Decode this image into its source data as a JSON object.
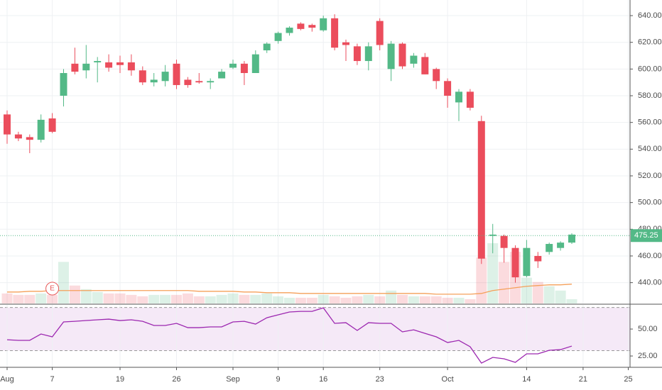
{
  "chart_data": {
    "type": "candlestick",
    "categories": [
      "Aug",
      null,
      null,
      null,
      "7",
      null,
      null,
      null,
      null,
      null,
      "19",
      null,
      null,
      null,
      null,
      "26",
      null,
      null,
      null,
      null,
      "Sep",
      null,
      null,
      null,
      "9",
      null,
      null,
      null,
      "16",
      null,
      null,
      null,
      null,
      "23",
      null,
      null,
      null,
      null,
      null,
      "Oct",
      null,
      null,
      null,
      null,
      null,
      null,
      "14",
      null,
      null,
      null,
      null,
      "21",
      null,
      null,
      null,
      "25"
    ],
    "open": [
      566,
      551,
      549,
      547,
      563,
      580,
      604,
      599,
      605,
      605,
      605,
      605,
      599,
      590,
      591,
      604,
      592,
      591,
      590,
      593,
      601,
      604,
      597,
      614,
      621,
      627,
      634,
      633,
      629,
      638,
      620,
      617,
      606,
      636,
      600,
      619,
      604,
      609,
      600,
      591,
      575,
      583,
      561,
      475,
      475,
      466,
      445,
      460,
      463,
      466,
      470,
      null,
      null,
      null,
      null,
      null
    ],
    "high": [
      569,
      553,
      551,
      566,
      567,
      600,
      616,
      618,
      609,
      611,
      610,
      611,
      602,
      597,
      603,
      607,
      594,
      597,
      593,
      600,
      607,
      606,
      614,
      620,
      628,
      632,
      635,
      634,
      640,
      641,
      622,
      619,
      620,
      638,
      621,
      620,
      612,
      612,
      601,
      593,
      585,
      585,
      565,
      484,
      476,
      468,
      472,
      463,
      470,
      471,
      477,
      null,
      null,
      null,
      null,
      null
    ],
    "low": [
      544,
      546,
      537,
      545,
      552,
      572,
      596,
      593,
      590,
      598,
      597,
      595,
      588,
      587,
      587,
      585,
      586,
      589,
      585,
      593,
      600,
      588,
      597,
      612,
      619,
      625,
      629,
      628,
      628,
      614,
      606,
      603,
      599,
      614,
      591,
      600,
      601,
      596,
      585,
      571,
      561,
      569,
      454,
      462,
      455,
      440,
      444,
      451,
      461,
      464,
      469,
      null,
      null,
      null,
      null,
      null
    ],
    "close": [
      551,
      548,
      547,
      562,
      553,
      597,
      598,
      604,
      606,
      601,
      603,
      599,
      590,
      592,
      598,
      588,
      588,
      590,
      591,
      598,
      604,
      597,
      611,
      619,
      627,
      631,
      630,
      631,
      638,
      616,
      618,
      606,
      617,
      618,
      619,
      602,
      610,
      596,
      591,
      580,
      583,
      571,
      458,
      476,
      466,
      444,
      466,
      456,
      469,
      470,
      476,
      null,
      null,
      null,
      null,
      null
    ],
    "volume": [
      14,
      12,
      12,
      14,
      12,
      58,
      25,
      20,
      16,
      14,
      14,
      12,
      10,
      12,
      12,
      12,
      14,
      10,
      10,
      12,
      14,
      12,
      12,
      14,
      10,
      8,
      8,
      8,
      12,
      10,
      8,
      10,
      12,
      10,
      18,
      12,
      10,
      10,
      10,
      8,
      8,
      6,
      64,
      84,
      58,
      72,
      36,
      30,
      24,
      18,
      6,
      null,
      null,
      null,
      null,
      null
    ],
    "volume_ma": [
      16,
      16,
      17,
      17,
      18,
      18,
      18,
      18,
      18,
      18,
      18,
      18,
      18,
      18,
      18,
      18,
      18,
      17,
      17,
      17,
      17,
      16,
      16,
      15,
      15,
      15,
      14,
      14,
      14,
      14,
      14,
      14,
      14,
      14,
      14,
      14,
      14,
      14,
      13,
      13,
      13,
      13,
      14,
      18,
      20,
      22,
      24,
      25,
      26,
      26,
      27,
      null,
      null,
      null,
      null,
      null
    ],
    "rsi": [
      40.1,
      39.5,
      39.5,
      45.4,
      42.8,
      56.6,
      57.2,
      57.9,
      58.6,
      59.2,
      57.9,
      58.6,
      57.2,
      53.3,
      53.3,
      55.3,
      51.3,
      51.3,
      52,
      52,
      56.6,
      57.2,
      54.6,
      60.5,
      63.2,
      65.8,
      66.4,
      66.4,
      69.7,
      55.3,
      55.9,
      48.7,
      55.9,
      55.3,
      55.3,
      47.4,
      49.3,
      46,
      42.8,
      37.5,
      39.5,
      33.6,
      18.4,
      23.7,
      22.4,
      19.1,
      27,
      27,
      30.3,
      30.9,
      34.2,
      null,
      null,
      null,
      null,
      null
    ],
    "up_color": "#53b987",
    "down_color": "#eb4d5c",
    "volume_ma_color": "#f5a05a",
    "rsi_color": "#9c27b0",
    "ylim": [
      424.4,
      651.7
    ],
    "yticks": [
      {
        "value": 440,
        "label": "440.00"
      },
      {
        "value": 460,
        "label": "460.00"
      },
      {
        "value": 480,
        "label": "480.00"
      },
      {
        "value": 500,
        "label": "500.00"
      },
      {
        "value": 520,
        "label": "520.00"
      },
      {
        "value": 540,
        "label": "540.00"
      },
      {
        "value": 560,
        "label": "560.00"
      },
      {
        "value": 580,
        "label": "580.00"
      },
      {
        "value": 600,
        "label": "600.00"
      },
      {
        "value": 620,
        "label": "620.00"
      },
      {
        "value": 640,
        "label": "640.00"
      }
    ],
    "last_price": 475.25,
    "rsi_lim": [
      14.5,
      72.4
    ],
    "rsi_ticks": [
      {
        "value": 25,
        "label": "25.00"
      },
      {
        "value": 50,
        "label": "50.00"
      }
    ],
    "rsi_bands": [
      30,
      70
    ],
    "event": {
      "label": "E",
      "category": "7"
    },
    "grid": true
  }
}
